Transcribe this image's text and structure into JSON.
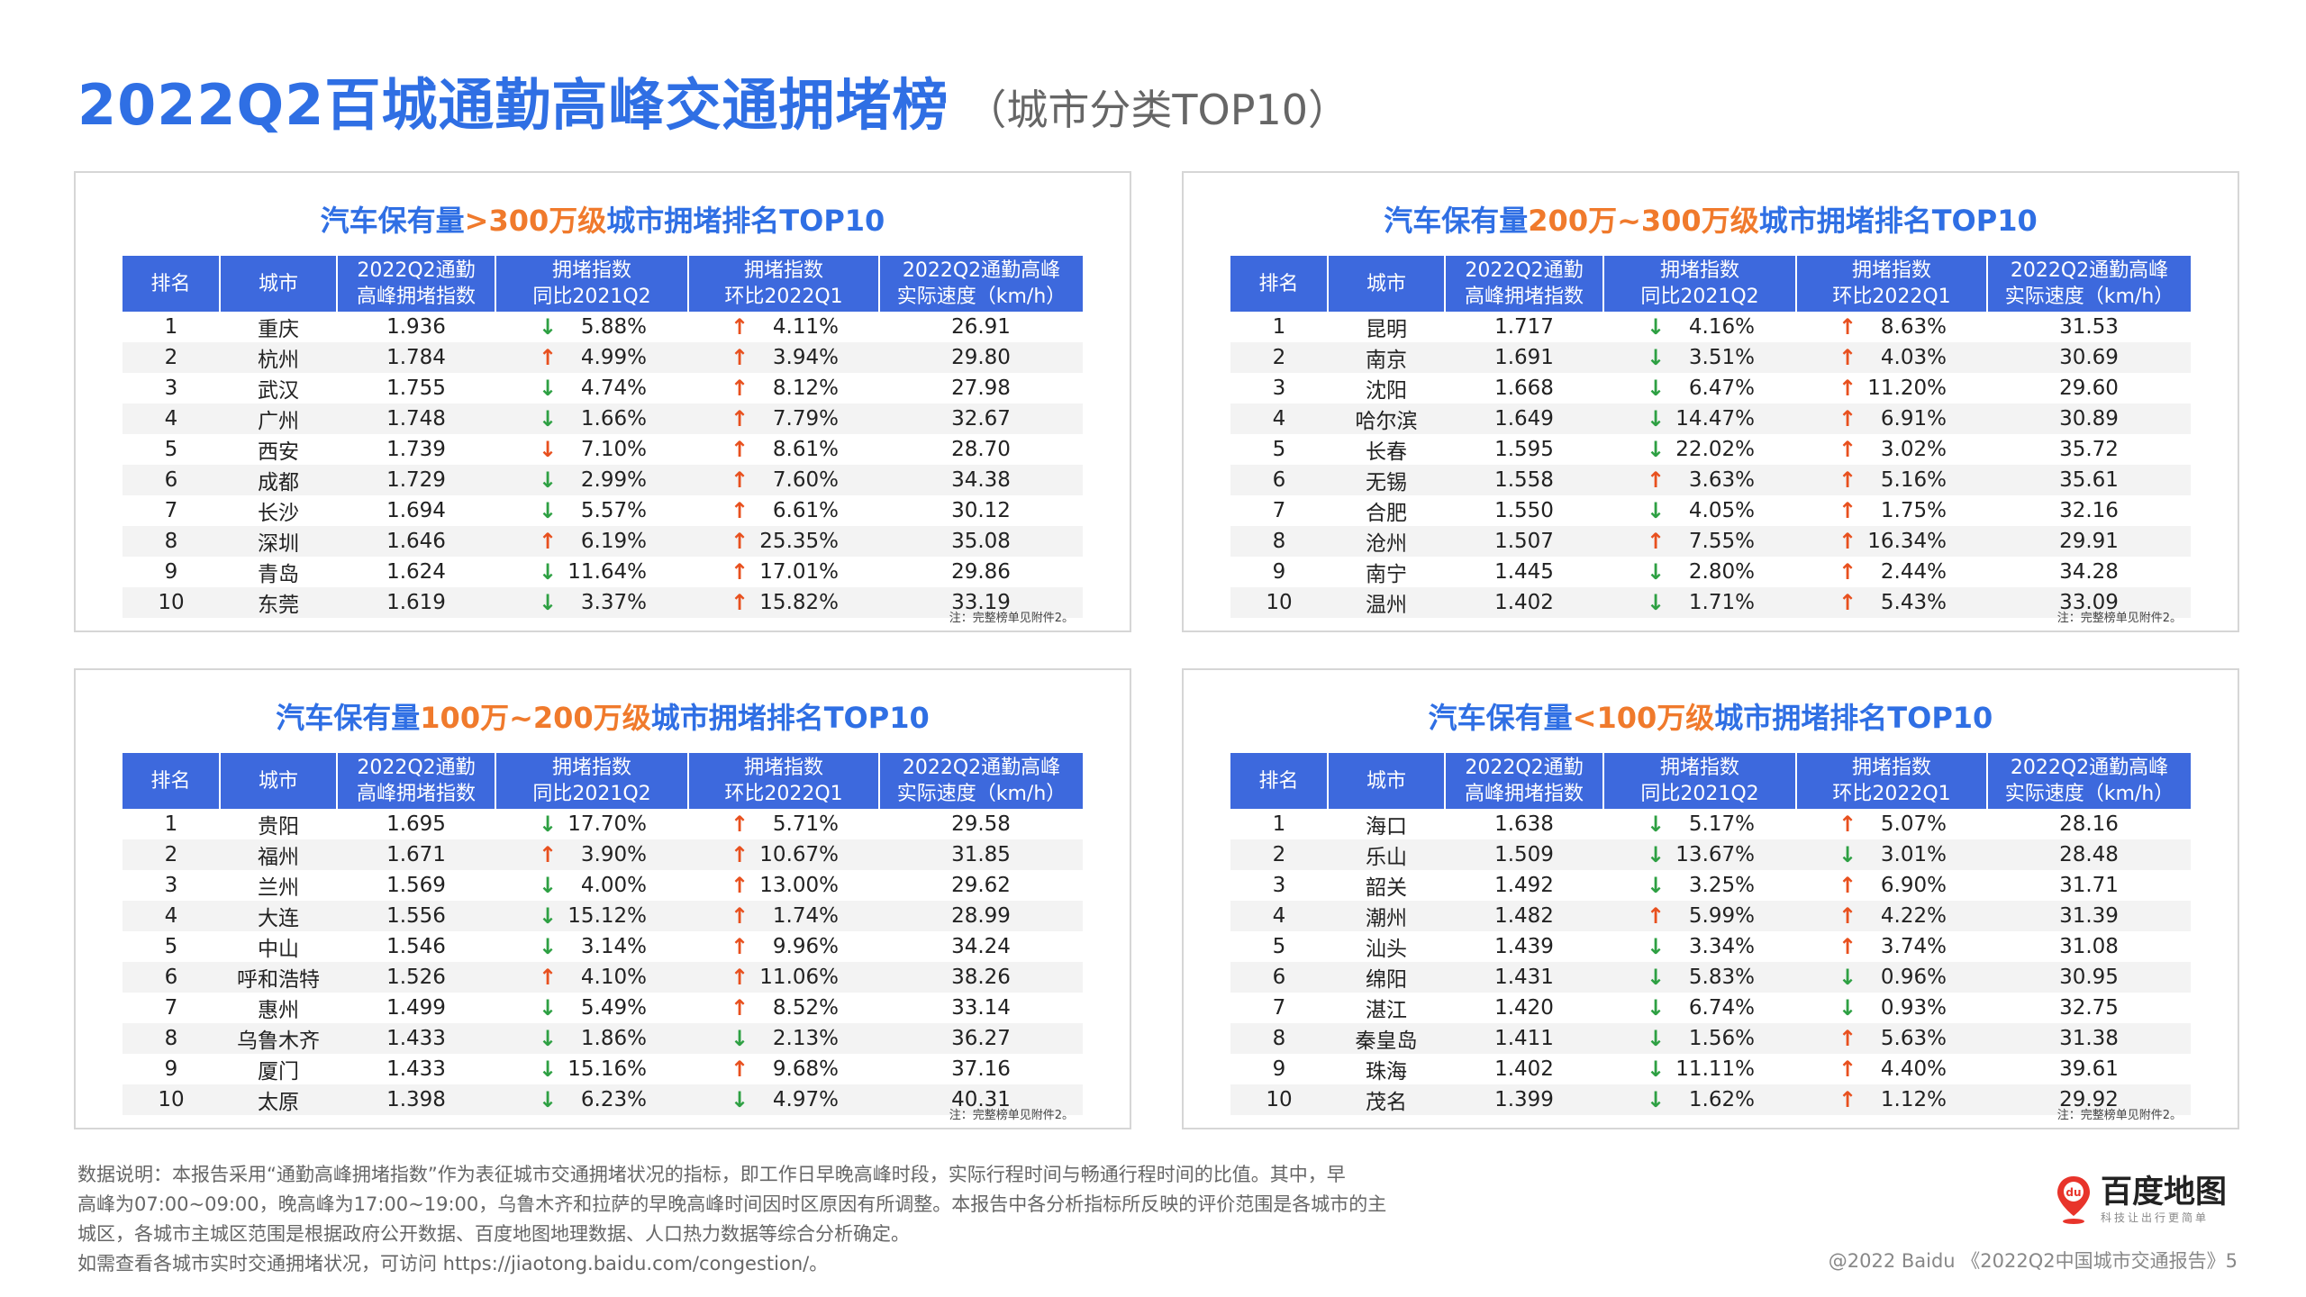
{
  "title": "2022Q2百城通勤高峰交通拥堵榜",
  "subtitle": "（城市分类TOP10）",
  "headers": [
    "排名",
    "城市",
    "2022Q2通勤\n高峰拥堵指数",
    "拥堵指数\n同比2021Q2",
    "拥堵指数\n环比2022Q1",
    "2022Q2通勤高峰\n实际速度（km/h）"
  ],
  "note": "注：完整榜单见附件2。",
  "panels": [
    {
      "title_pre": "汽车保有量",
      "title_hl": ">300万级",
      "title_post": "城市拥堵排名TOP10",
      "rows": [
        {
          "rank": "1",
          "city": "重庆",
          "index": "1.936",
          "yoy_dir": "down",
          "yoy": "5.88%",
          "qoq_dir": "up",
          "qoq": "4.11%",
          "speed": "26.91"
        },
        {
          "rank": "2",
          "city": "杭州",
          "index": "1.784",
          "yoy_dir": "up",
          "yoy": "4.99%",
          "qoq_dir": "up",
          "qoq": "3.94%",
          "speed": "29.80"
        },
        {
          "rank": "3",
          "city": "武汉",
          "index": "1.755",
          "yoy_dir": "down",
          "yoy": "4.74%",
          "qoq_dir": "up",
          "qoq": "8.12%",
          "speed": "27.98"
        },
        {
          "rank": "4",
          "city": "广州",
          "index": "1.748",
          "yoy_dir": "down",
          "yoy": "1.66%",
          "qoq_dir": "up",
          "qoq": "7.79%",
          "speed": "32.67"
        },
        {
          "rank": "5",
          "city": "西安",
          "index": "1.739",
          "yoy_dir": "downred",
          "yoy": "7.10%",
          "qoq_dir": "up",
          "qoq": "8.61%",
          "speed": "28.70"
        },
        {
          "rank": "6",
          "city": "成都",
          "index": "1.729",
          "yoy_dir": "down",
          "yoy": "2.99%",
          "qoq_dir": "up",
          "qoq": "7.60%",
          "speed": "34.38"
        },
        {
          "rank": "7",
          "city": "长沙",
          "index": "1.694",
          "yoy_dir": "down",
          "yoy": "5.57%",
          "qoq_dir": "up",
          "qoq": "6.61%",
          "speed": "30.12"
        },
        {
          "rank": "8",
          "city": "深圳",
          "index": "1.646",
          "yoy_dir": "up",
          "yoy": "6.19%",
          "qoq_dir": "up",
          "qoq": "25.35%",
          "speed": "35.08"
        },
        {
          "rank": "9",
          "city": "青岛",
          "index": "1.624",
          "yoy_dir": "down",
          "yoy": "11.64%",
          "qoq_dir": "up",
          "qoq": "17.01%",
          "speed": "29.86"
        },
        {
          "rank": "10",
          "city": "东莞",
          "index": "1.619",
          "yoy_dir": "down",
          "yoy": "3.37%",
          "qoq_dir": "up",
          "qoq": "15.82%",
          "speed": "33.19"
        }
      ]
    },
    {
      "title_pre": "汽车保有量",
      "title_hl": "200万~300万级",
      "title_post": "城市拥堵排名TOP10",
      "rows": [
        {
          "rank": "1",
          "city": "昆明",
          "index": "1.717",
          "yoy_dir": "down",
          "yoy": "4.16%",
          "qoq_dir": "up",
          "qoq": "8.63%",
          "speed": "31.53"
        },
        {
          "rank": "2",
          "city": "南京",
          "index": "1.691",
          "yoy_dir": "down",
          "yoy": "3.51%",
          "qoq_dir": "up",
          "qoq": "4.03%",
          "speed": "30.69"
        },
        {
          "rank": "3",
          "city": "沈阳",
          "index": "1.668",
          "yoy_dir": "down",
          "yoy": "6.47%",
          "qoq_dir": "up",
          "qoq": "11.20%",
          "speed": "29.60"
        },
        {
          "rank": "4",
          "city": "哈尔滨",
          "index": "1.649",
          "yoy_dir": "down",
          "yoy": "14.47%",
          "qoq_dir": "up",
          "qoq": "6.91%",
          "speed": "30.89"
        },
        {
          "rank": "5",
          "city": "长春",
          "index": "1.595",
          "yoy_dir": "down",
          "yoy": "22.02%",
          "qoq_dir": "up",
          "qoq": "3.02%",
          "speed": "35.72"
        },
        {
          "rank": "6",
          "city": "无锡",
          "index": "1.558",
          "yoy_dir": "up",
          "yoy": "3.63%",
          "qoq_dir": "up",
          "qoq": "5.16%",
          "speed": "35.61"
        },
        {
          "rank": "7",
          "city": "合肥",
          "index": "1.550",
          "yoy_dir": "down",
          "yoy": "4.05%",
          "qoq_dir": "up",
          "qoq": "1.75%",
          "speed": "32.16"
        },
        {
          "rank": "8",
          "city": "沧州",
          "index": "1.507",
          "yoy_dir": "up",
          "yoy": "7.55%",
          "qoq_dir": "up",
          "qoq": "16.34%",
          "speed": "29.91"
        },
        {
          "rank": "9",
          "city": "南宁",
          "index": "1.445",
          "yoy_dir": "down",
          "yoy": "2.80%",
          "qoq_dir": "up",
          "qoq": "2.44%",
          "speed": "34.28"
        },
        {
          "rank": "10",
          "city": "温州",
          "index": "1.402",
          "yoy_dir": "down",
          "yoy": "1.71%",
          "qoq_dir": "up",
          "qoq": "5.43%",
          "speed": "33.09"
        }
      ]
    },
    {
      "title_pre": "汽车保有量",
      "title_hl": "100万~200万级",
      "title_post": "城市拥堵排名TOP10",
      "rows": [
        {
          "rank": "1",
          "city": "贵阳",
          "index": "1.695",
          "yoy_dir": "down",
          "yoy": "17.70%",
          "qoq_dir": "up",
          "qoq": "5.71%",
          "speed": "29.58"
        },
        {
          "rank": "2",
          "city": "福州",
          "index": "1.671",
          "yoy_dir": "up",
          "yoy": "3.90%",
          "qoq_dir": "up",
          "qoq": "10.67%",
          "speed": "31.85"
        },
        {
          "rank": "3",
          "city": "兰州",
          "index": "1.569",
          "yoy_dir": "down",
          "yoy": "4.00%",
          "qoq_dir": "up",
          "qoq": "13.00%",
          "speed": "29.62"
        },
        {
          "rank": "4",
          "city": "大连",
          "index": "1.556",
          "yoy_dir": "down",
          "yoy": "15.12%",
          "qoq_dir": "up",
          "qoq": "1.74%",
          "speed": "28.99"
        },
        {
          "rank": "5",
          "city": "中山",
          "index": "1.546",
          "yoy_dir": "down",
          "yoy": "3.14%",
          "qoq_dir": "up",
          "qoq": "9.96%",
          "speed": "34.24"
        },
        {
          "rank": "6",
          "city": "呼和浩特",
          "index": "1.526",
          "yoy_dir": "up",
          "yoy": "4.10%",
          "qoq_dir": "up",
          "qoq": "11.06%",
          "speed": "38.26"
        },
        {
          "rank": "7",
          "city": "惠州",
          "index": "1.499",
          "yoy_dir": "down",
          "yoy": "5.49%",
          "qoq_dir": "up",
          "qoq": "8.52%",
          "speed": "33.14"
        },
        {
          "rank": "8",
          "city": "乌鲁木齐",
          "index": "1.433",
          "yoy_dir": "down",
          "yoy": "1.86%",
          "qoq_dir": "down",
          "qoq": "2.13%",
          "speed": "36.27"
        },
        {
          "rank": "9",
          "city": "厦门",
          "index": "1.433",
          "yoy_dir": "down",
          "yoy": "15.16%",
          "qoq_dir": "up",
          "qoq": "9.68%",
          "speed": "37.16"
        },
        {
          "rank": "10",
          "city": "太原",
          "index": "1.398",
          "yoy_dir": "down",
          "yoy": "6.23%",
          "qoq_dir": "down",
          "qoq": "4.97%",
          "speed": "40.31"
        }
      ]
    },
    {
      "title_pre": "汽车保有量",
      "title_hl": "<100万级",
      "title_post": "城市拥堵排名TOP10",
      "rows": [
        {
          "rank": "1",
          "city": "海口",
          "index": "1.638",
          "yoy_dir": "down",
          "yoy": "5.17%",
          "qoq_dir": "up",
          "qoq": "5.07%",
          "speed": "28.16"
        },
        {
          "rank": "2",
          "city": "乐山",
          "index": "1.509",
          "yoy_dir": "down",
          "yoy": "13.67%",
          "qoq_dir": "down",
          "qoq": "3.01%",
          "speed": "28.48"
        },
        {
          "rank": "3",
          "city": "韶关",
          "index": "1.492",
          "yoy_dir": "down",
          "yoy": "3.25%",
          "qoq_dir": "up",
          "qoq": "6.90%",
          "speed": "31.71"
        },
        {
          "rank": "4",
          "city": "潮州",
          "index": "1.482",
          "yoy_dir": "up",
          "yoy": "5.99%",
          "qoq_dir": "up",
          "qoq": "4.22%",
          "speed": "31.39"
        },
        {
          "rank": "5",
          "city": "汕头",
          "index": "1.439",
          "yoy_dir": "down",
          "yoy": "3.34%",
          "qoq_dir": "up",
          "qoq": "3.74%",
          "speed": "31.08"
        },
        {
          "rank": "6",
          "city": "绵阳",
          "index": "1.431",
          "yoy_dir": "down",
          "yoy": "5.83%",
          "qoq_dir": "down",
          "qoq": "0.96%",
          "speed": "30.95"
        },
        {
          "rank": "7",
          "city": "湛江",
          "index": "1.420",
          "yoy_dir": "down",
          "yoy": "6.74%",
          "qoq_dir": "down",
          "qoq": "0.93%",
          "speed": "32.75"
        },
        {
          "rank": "8",
          "city": "秦皇岛",
          "index": "1.411",
          "yoy_dir": "down",
          "yoy": "1.56%",
          "qoq_dir": "up",
          "qoq": "5.63%",
          "speed": "31.38"
        },
        {
          "rank": "9",
          "city": "珠海",
          "index": "1.402",
          "yoy_dir": "down",
          "yoy": "11.11%",
          "qoq_dir": "up",
          "qoq": "4.40%",
          "speed": "39.61"
        },
        {
          "rank": "10",
          "city": "茂名",
          "index": "1.399",
          "yoy_dir": "down",
          "yoy": "1.62%",
          "qoq_dir": "up",
          "qoq": "1.12%",
          "speed": "29.92"
        }
      ]
    }
  ],
  "footnote": [
    "数据说明：本报告采用“通勤高峰拥堵指数”作为表征城市交通拥堵状况的指标，即工作日早晚高峰时段，实际行程时间与畅通行程时间的比值。其中，早",
    "高峰为07:00~09:00，晚高峰为17:00~19:00，乌鲁木齐和拉萨的早晚高峰时间因时区原因有所调整。本报告中各分析指标所反映的评价范围是各城市的主",
    "城区，各城市主城区范围是根据政府公开数据、百度地图地理数据、人口热力数据等综合分析确定。",
    "如需查看各城市实时交通拥堵状况，可访问 https://jiaotong.baidu.com/congestion/。"
  ],
  "logo": {
    "name": "百度地图",
    "slogan": "科技让出行更简单",
    "badge": "du"
  },
  "copyright": "@2022 Baidu 《2022Q2中国城市交通报告》5",
  "colors": {
    "title_blue": "#2f6fe4",
    "highlight_orange": "#f07a2c",
    "header_blue": "#3d69dd",
    "arrow_up_red": "#e8501e",
    "arrow_down_green": "#2ea043",
    "logo_red": "#e8342b"
  }
}
